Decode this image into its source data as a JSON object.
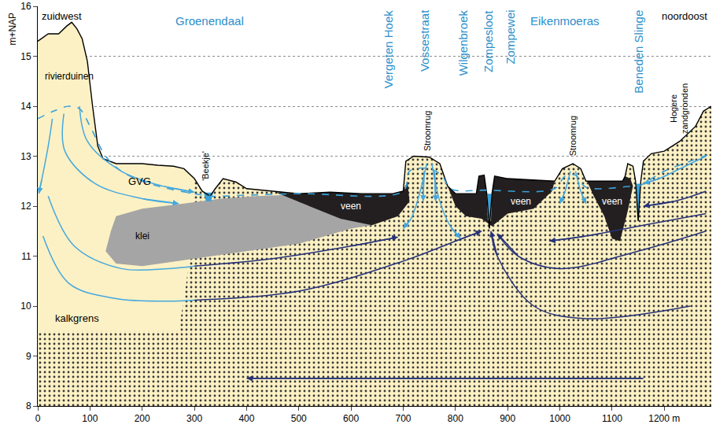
{
  "chart_data": {
    "type": "cross_section",
    "ylabel": "m+NAP",
    "xlim": [
      0,
      1290
    ],
    "ylim": [
      8,
      16
    ],
    "xticks": [
      0,
      100,
      200,
      300,
      400,
      500,
      600,
      700,
      800,
      900,
      1000,
      1100,
      {
        "value": 1200,
        "label": "1200 m"
      }
    ],
    "yticks": [
      8,
      9,
      10,
      11,
      12,
      13,
      14,
      15,
      16
    ],
    "grid": true,
    "corners": {
      "left": "zuidwest",
      "right": "noordoost"
    },
    "places": {
      "color": "#2b8fcb",
      "areas": [
        {
          "text": "Groenendaal",
          "x": 330
        },
        {
          "text": "Eikenmoeras",
          "x": 1010
        }
      ],
      "sites": [
        {
          "text": "Vergeten Hoek",
          "x": 672
        },
        {
          "text": "Vossestraat",
          "x": 740
        },
        {
          "text": "Wilgenbroek",
          "x": 815
        },
        {
          "text": "Zompesloot",
          "x": 862
        },
        {
          "text": "Zompewei",
          "x": 905
        },
        {
          "text": "Beneden Slinge",
          "x": 1150
        }
      ]
    },
    "surface": [
      [
        0,
        15.3
      ],
      [
        20,
        15.45
      ],
      [
        40,
        15.45
      ],
      [
        55,
        15.6
      ],
      [
        65,
        15.68
      ],
      [
        75,
        15.55
      ],
      [
        85,
        15.35
      ],
      [
        95,
        14.9
      ],
      [
        105,
        14.0
      ],
      [
        115,
        13.2
      ],
      [
        125,
        12.95
      ],
      [
        150,
        12.85
      ],
      [
        180,
        12.85
      ],
      [
        200,
        12.85
      ],
      [
        230,
        12.82
      ],
      [
        260,
        12.8
      ],
      [
        280,
        12.75
      ],
      [
        300,
        12.55
      ],
      [
        315,
        12.3
      ],
      [
        330,
        12.2
      ],
      [
        340,
        12.35
      ],
      [
        355,
        12.55
      ],
      [
        380,
        12.48
      ],
      [
        400,
        12.35
      ],
      [
        450,
        12.3
      ],
      [
        500,
        12.25
      ],
      [
        560,
        12.28
      ],
      [
        620,
        12.25
      ],
      [
        680,
        12.25
      ],
      [
        700,
        12.3
      ],
      [
        705,
        12.9
      ],
      [
        720,
        13.0
      ],
      [
        750,
        12.98
      ],
      [
        770,
        12.85
      ],
      [
        785,
        12.4
      ],
      [
        800,
        12.25
      ],
      [
        840,
        12.25
      ],
      [
        845,
        12.6
      ],
      [
        855,
        12.62
      ],
      [
        860,
        12.25
      ],
      [
        865,
        11.55
      ],
      [
        870,
        12.25
      ],
      [
        875,
        12.6
      ],
      [
        900,
        12.55
      ],
      [
        990,
        12.5
      ],
      [
        1005,
        12.75
      ],
      [
        1025,
        12.85
      ],
      [
        1040,
        12.75
      ],
      [
        1050,
        12.5
      ],
      [
        1120,
        12.5
      ],
      [
        1125,
        12.6
      ],
      [
        1130,
        12.85
      ],
      [
        1140,
        12.8
      ],
      [
        1145,
        12.5
      ],
      [
        1150,
        11.7
      ],
      [
        1155,
        12.5
      ],
      [
        1160,
        12.9
      ],
      [
        1175,
        13.05
      ],
      [
        1200,
        13.1
      ],
      [
        1230,
        13.3
      ],
      [
        1260,
        13.6
      ],
      [
        1275,
        13.9
      ],
      [
        1290,
        14.0
      ]
    ],
    "sand": {
      "name": "rivierduinen",
      "color": "#fcf1c4",
      "labels": [
        [
          60,
          14.6
        ]
      ]
    },
    "stippled_sand": {
      "name": "kalkgrens",
      "color": "#fcf1c4",
      "labels": [
        [
          75,
          9.75
        ]
      ],
      "boundary": [
        [
          0,
          9.5
        ],
        [
          270,
          9.5
        ],
        [
          285,
          10.5
        ],
        [
          295,
          11.5
        ],
        [
          300,
          12.55
        ]
      ]
    },
    "layers": [
      {
        "name": "klei",
        "color": "#a5a5a5",
        "labels": [
          [
            200,
            11.4
          ]
        ],
        "polygons": [
          [
            [
              140,
              11.5
            ],
            [
              150,
              11.8
            ],
            [
              200,
              11.95
            ],
            [
              280,
              12.05
            ],
            [
              350,
              12.15
            ],
            [
              420,
              12.2
            ],
            [
              470,
              12.22
            ],
            [
              520,
              12.0
            ],
            [
              600,
              11.75
            ],
            [
              640,
              11.62
            ],
            [
              600,
              11.55
            ],
            [
              500,
              11.25
            ],
            [
              400,
              11.1
            ],
            [
              300,
              10.95
            ],
            [
              200,
              10.8
            ],
            [
              150,
              10.85
            ],
            [
              130,
              11.1
            ]
          ]
        ]
      },
      {
        "name": "veen",
        "color": "#231f20",
        "labels": [
          [
            600,
            12.0
          ],
          [
            925,
            12.1
          ],
          [
            1100,
            12.1
          ]
        ],
        "polygons": [
          [
            [
              455,
              12.28
            ],
            [
              500,
              12.25
            ],
            [
              560,
              12.28
            ],
            [
              620,
              12.25
            ],
            [
              680,
              12.25
            ],
            [
              700,
              12.3
            ],
            [
              708,
              12.5
            ],
            [
              712,
              12.1
            ],
            [
              690,
              11.8
            ],
            [
              640,
              11.62
            ],
            [
              580,
              11.75
            ],
            [
              520,
              12.0
            ]
          ],
          [
            [
              785,
              12.4
            ],
            [
              800,
              12.25
            ],
            [
              840,
              12.25
            ],
            [
              845,
              12.6
            ],
            [
              855,
              12.62
            ],
            [
              860,
              12.2
            ],
            [
              862,
              11.7
            ],
            [
              868,
              11.7
            ],
            [
              870,
              12.25
            ],
            [
              875,
              12.6
            ],
            [
              900,
              12.55
            ],
            [
              990,
              12.5
            ],
            [
              985,
              12.3
            ],
            [
              950,
              11.95
            ],
            [
              900,
              11.85
            ],
            [
              870,
              11.6
            ],
            [
              850,
              11.75
            ],
            [
              820,
              11.8
            ],
            [
              800,
              12.0
            ]
          ],
          [
            [
              1052,
              12.5
            ],
            [
              1120,
              12.5
            ],
            [
              1125,
              12.6
            ],
            [
              1135,
              12.55
            ],
            [
              1140,
              12.4
            ],
            [
              1130,
              11.9
            ],
            [
              1115,
              11.3
            ],
            [
              1100,
              11.35
            ],
            [
              1085,
              11.8
            ],
            [
              1065,
              12.2
            ]
          ]
        ]
      }
    ],
    "water": {
      "color": "#3aa0d8",
      "polygons": [
        [
          [
            318,
            12.27
          ],
          [
            336,
            12.27
          ],
          [
            332,
            12.1
          ],
          [
            322,
            12.1
          ]
        ],
        [
          [
            861,
            12.25
          ],
          [
            869,
            12.25
          ],
          [
            866,
            11.58
          ],
          [
            864,
            11.58
          ]
        ],
        [
          [
            1146,
            12.45
          ],
          [
            1154,
            12.45
          ],
          [
            1151,
            11.73
          ],
          [
            1149,
            11.73
          ]
        ]
      ]
    },
    "gvg": {
      "name": "GVG",
      "color": "#3aa0d8",
      "line_style": "dash",
      "labels": [
        [
          195,
          12.5
        ]
      ],
      "points": [
        [
          0,
          13.75
        ],
        [
          30,
          13.9
        ],
        [
          60,
          14.0
        ],
        [
          80,
          13.95
        ],
        [
          100,
          13.6
        ],
        [
          130,
          13.0
        ],
        [
          160,
          12.7
        ],
        [
          200,
          12.5
        ],
        [
          250,
          12.35
        ],
        [
          300,
          12.25
        ],
        [
          330,
          12.2
        ],
        [
          400,
          12.22
        ],
        [
          500,
          12.25
        ],
        [
          700,
          12.3
        ],
        [
          712,
          12.7
        ],
        [
          750,
          12.75
        ],
        [
          775,
          12.6
        ],
        [
          790,
          12.35
        ],
        [
          860,
          12.32
        ],
        [
          990,
          12.35
        ],
        [
          1010,
          12.6
        ],
        [
          1030,
          12.62
        ],
        [
          1050,
          12.38
        ],
        [
          1140,
          12.4
        ],
        [
          1150,
          12.4
        ],
        [
          1200,
          12.7
        ],
        [
          1250,
          12.9
        ],
        [
          1290,
          13.05
        ]
      ]
    },
    "texts": {
      "vertical": [
        {
          "text": "'Beekje'",
          "x": 322,
          "y": 12.8
        },
        {
          "text": "Stroomrug",
          "x": 745,
          "y": 13.5
        },
        {
          "text": "Stroomrug",
          "x": 1025,
          "y": 13.4
        },
        {
          "lines": [
            "Hogere",
            "zandgronden"
          ],
          "x": 1228,
          "y": 13.95
        }
      ]
    },
    "flows": [
      {
        "color": "#45a8de",
        "paths": [
          {
            "marker": "arrow",
            "points": [
              [
                28,
                13.75
              ],
              [
                20,
                13.2
              ],
              [
                8,
                12.55
              ],
              [
                2,
                12.25
              ]
            ]
          },
          {
            "marker": "arrow",
            "points": [
              [
                50,
                13.85
              ],
              [
                52,
                13.1
              ],
              [
                110,
                12.45
              ],
              [
                200,
                12.15
              ],
              [
                270,
                12.05
              ]
            ]
          },
          {
            "marker": "arrow",
            "points": [
              [
                80,
                14.0
              ],
              [
                95,
                13.3
              ],
              [
                160,
                12.7
              ],
              [
                240,
                12.4
              ],
              [
                300,
                12.28
              ]
            ]
          },
          {
            "marker": "none",
            "points": [
              [
                20,
                12.2
              ],
              [
                70,
                11.2
              ],
              [
                160,
                10.75
              ],
              [
                250,
                10.75
              ],
              [
                300,
                10.8
              ]
            ]
          },
          {
            "marker": "none",
            "points": [
              [
                10,
                11.4
              ],
              [
                60,
                10.45
              ],
              [
                150,
                10.15
              ],
              [
                250,
                10.1
              ],
              [
                300,
                10.12
              ]
            ]
          },
          {
            "marker": "arrow",
            "points": [
              [
                745,
                12.85
              ],
              [
                730,
                12.2
              ],
              [
                715,
                11.75
              ],
              [
                700,
                11.55
              ]
            ]
          },
          {
            "marker": "arrow",
            "points": [
              [
                755,
                12.85
              ],
              [
                770,
                12.1
              ],
              [
                790,
                11.6
              ],
              [
                810,
                11.35
              ]
            ]
          },
          {
            "marker": "arrow",
            "points": [
              [
                740,
                12.7
              ],
              [
                738,
                12.1
              ]
            ]
          },
          {
            "marker": "arrow",
            "points": [
              [
                760,
                12.7
              ],
              [
                762,
                12.1
              ]
            ]
          },
          {
            "marker": "arrow",
            "points": [
              [
                1020,
                12.7
              ],
              [
                1010,
                12.3
              ],
              [
                1000,
                12.05
              ]
            ]
          },
          {
            "marker": "arrow",
            "points": [
              [
                1030,
                12.7
              ],
              [
                1040,
                12.3
              ],
              [
                1050,
                12.05
              ]
            ]
          },
          {
            "marker": "arrow",
            "points": [
              [
                1280,
                13.0
              ],
              [
                1240,
                12.8
              ],
              [
                1190,
                12.55
              ],
              [
                1160,
                12.45
              ]
            ]
          }
        ]
      },
      {
        "color": "#26327a",
        "paths": [
          {
            "marker": "arrow",
            "points": [
              [
                300,
                10.8
              ],
              [
                450,
                10.95
              ],
              [
                600,
                11.2
              ],
              [
                690,
                11.38
              ]
            ]
          },
          {
            "marker": "arrow",
            "points": [
              [
                300,
                10.12
              ],
              [
                500,
                10.3
              ],
              [
                700,
                10.9
              ],
              [
                800,
                11.3
              ],
              [
                850,
                11.5
              ]
            ]
          },
          {
            "marker": "arrow",
            "points": [
              [
                1250,
                10.0
              ],
              [
                1050,
                9.75
              ],
              [
                950,
                10.0
              ],
              [
                880,
                11.0
              ],
              [
                868,
                11.5
              ]
            ]
          },
          {
            "marker": "arrow",
            "points": [
              [
                1280,
                11.5
              ],
              [
                1150,
                11.1
              ],
              [
                1000,
                10.75
              ],
              [
                920,
                11.0
              ],
              [
                880,
                11.45
              ]
            ]
          },
          {
            "marker": "arrow",
            "points": [
              [
                1280,
                11.85
              ],
              [
                1150,
                11.6
              ],
              [
                1050,
                11.4
              ],
              [
                980,
                11.3
              ]
            ]
          },
          {
            "marker": "arrow",
            "points": [
              [
                1280,
                12.3
              ],
              [
                1220,
                12.1
              ],
              [
                1160,
                12.0
              ]
            ]
          },
          {
            "marker": "arrow",
            "points": [
              [
                1160,
                8.55
              ],
              [
                400,
                8.55
              ]
            ]
          }
        ]
      }
    ]
  }
}
